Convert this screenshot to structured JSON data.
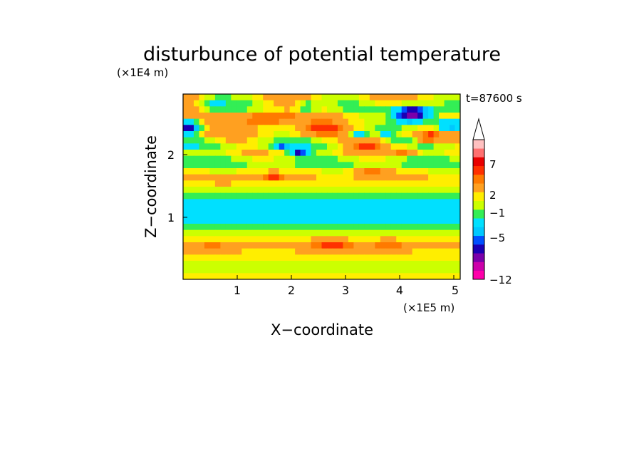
{
  "chart_data": {
    "type": "heatmap",
    "title": "disturbunce of potential temperature",
    "time_label": "t=87600 s",
    "xlabel": "X−coordinate",
    "ylabel": "Z−coordinate",
    "x_unit": "(×1E5 m)",
    "y_unit": "(×1E4 m)",
    "x_ticks": [
      "1",
      "2",
      "3",
      "4",
      "5"
    ],
    "y_ticks": [
      "1",
      "2"
    ],
    "xlim": [
      0,
      5.13
    ],
    "ylim": [
      0,
      2.95
    ],
    "colorbar": {
      "labels": [
        "7",
        "2",
        "−1",
        "−5",
        "−12"
      ],
      "colors": [
        "#ff00aa",
        "#cc00aa",
        "#7a00aa",
        "#1a00b4",
        "#0050ff",
        "#00c8ff",
        "#00e0ff",
        "#33ee55",
        "#ccff00",
        "#ffee00",
        "#ffa020",
        "#ff7a00",
        "#ff3000",
        "#e80000",
        "#ff7070",
        "#ffc0c0"
      ],
      "extend_top": true
    },
    "field": {
      "nx": 52,
      "nz": 30,
      "bands": [
        {
          "z": 0.02,
          "v": 0.8
        },
        {
          "z": 0.12,
          "v": 0.3
        },
        {
          "z": 0.22,
          "v": -0.3
        },
        {
          "z": 0.32,
          "v": 0.4
        },
        {
          "z": 0.42,
          "v": 0.7
        },
        {
          "z": 0.52,
          "v": 1.0
        },
        {
          "z": 0.62,
          "v": 0.6
        },
        {
          "z": 0.72,
          "v": -0.1
        },
        {
          "z": 0.82,
          "v": -0.7
        },
        {
          "z": 0.95,
          "v": -1.6
        },
        {
          "z": 1.05,
          "v": -1.7
        },
        {
          "z": 1.15,
          "v": -1.6
        },
        {
          "z": 1.25,
          "v": -1.3
        },
        {
          "z": 1.35,
          "v": -0.5
        },
        {
          "z": 1.45,
          "v": 0.1
        },
        {
          "z": 1.55,
          "v": 0.6
        },
        {
          "z": 1.65,
          "v": 0.9
        },
        {
          "z": 1.75,
          "v": 0.2
        },
        {
          "z": 1.85,
          "v": -0.8
        },
        {
          "z": 1.95,
          "v": 0.0
        },
        {
          "z": 2.05,
          "v": 0.5
        },
        {
          "z": 2.15,
          "v": -1.0
        },
        {
          "z": 2.25,
          "v": 0.6
        },
        {
          "z": 2.35,
          "v": 1.2
        },
        {
          "z": 2.45,
          "v": 0.2
        },
        {
          "z": 2.55,
          "v": 1.4
        },
        {
          "z": 2.65,
          "v": 0.8
        },
        {
          "z": 2.75,
          "v": -0.4
        },
        {
          "z": 2.85,
          "v": 1.0
        },
        {
          "z": 2.95,
          "v": 0.3
        }
      ],
      "blobs": [
        {
          "x": 4.25,
          "z": 2.62,
          "v": -9.5,
          "rx": 0.35,
          "rz": 0.13
        },
        {
          "x": 0.12,
          "z": 2.42,
          "v": -6.0,
          "rx": 0.22,
          "rz": 0.11
        },
        {
          "x": 4.95,
          "z": 2.45,
          "v": -5.5,
          "rx": 0.25,
          "rz": 0.1
        },
        {
          "x": 2.15,
          "z": 2.02,
          "v": -5.0,
          "rx": 0.15,
          "rz": 0.05
        },
        {
          "x": 1.85,
          "z": 2.12,
          "v": -4.0,
          "rx": 0.1,
          "rz": 0.05
        },
        {
          "x": 3.25,
          "z": 2.3,
          "v": -3.0,
          "rx": 0.2,
          "rz": 0.06
        },
        {
          "x": 3.75,
          "z": 2.35,
          "v": -3.0,
          "rx": 0.15,
          "rz": 0.05
        },
        {
          "x": 1.5,
          "z": 2.55,
          "v": 3.0,
          "rx": 0.45,
          "rz": 0.12
        },
        {
          "x": 2.55,
          "z": 2.4,
          "v": 3.5,
          "rx": 0.3,
          "rz": 0.08
        },
        {
          "x": 3.45,
          "z": 2.13,
          "v": 4.0,
          "rx": 0.35,
          "rz": 0.08
        },
        {
          "x": 4.1,
          "z": 2.05,
          "v": 3.0,
          "rx": 0.25,
          "rz": 0.08
        },
        {
          "x": 4.55,
          "z": 2.25,
          "v": 3.0,
          "rx": 0.2,
          "rz": 0.08
        },
        {
          "x": 3.5,
          "z": 1.7,
          "v": 2.5,
          "rx": 0.25,
          "rz": 0.07
        },
        {
          "x": 1.65,
          "z": 1.62,
          "v": 2.5,
          "rx": 0.25,
          "rz": 0.06
        },
        {
          "x": 0.75,
          "z": 1.58,
          "v": 1.5,
          "rx": 0.3,
          "rz": 0.05
        },
        {
          "x": 2.3,
          "z": 2.75,
          "v": -2.5,
          "rx": 0.2,
          "rz": 0.08
        },
        {
          "x": 0.6,
          "z": 2.78,
          "v": -2.0,
          "rx": 0.25,
          "rz": 0.1
        },
        {
          "x": 2.75,
          "z": 0.55,
          "v": 2.5,
          "rx": 0.4,
          "rz": 0.08
        },
        {
          "x": 0.55,
          "z": 0.5,
          "v": 2.0,
          "rx": 0.3,
          "rz": 0.07
        },
        {
          "x": 3.8,
          "z": 0.55,
          "v": 2.0,
          "rx": 0.3,
          "rz": 0.07
        }
      ]
    }
  }
}
